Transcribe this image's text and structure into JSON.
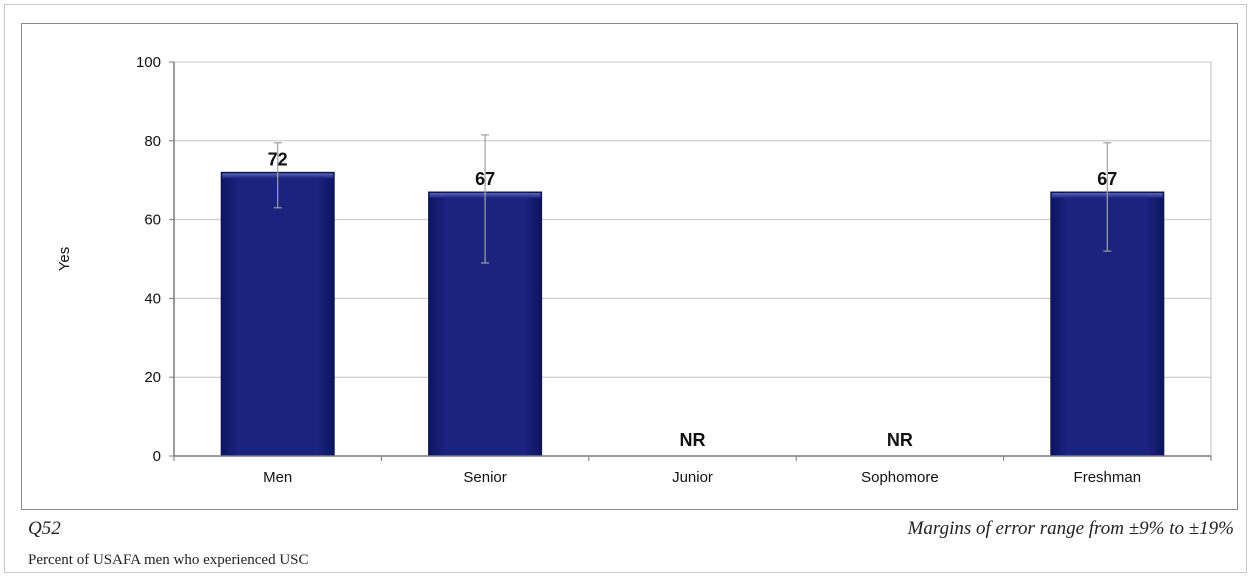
{
  "chart_data": {
    "type": "bar",
    "categories": [
      "Men",
      "Senior",
      "Junior",
      "Sophomore",
      "Freshman"
    ],
    "values": [
      72,
      67,
      null,
      null,
      67
    ],
    "data_labels": [
      "72",
      "67",
      "NR",
      "NR",
      "67"
    ],
    "error_bars": [
      {
        "low": 63,
        "high": 79.5
      },
      {
        "low": 49,
        "high": 81.5
      },
      null,
      null,
      {
        "low": 52,
        "high": 79.5
      }
    ],
    "ylabel": "Yes",
    "ylim": [
      0,
      100
    ],
    "yticks": [
      0,
      20,
      40,
      60,
      80,
      100
    ],
    "grid": true,
    "bar_color": "#1a237e"
  },
  "footer": {
    "question_id": "Q52",
    "margin_note": "Margins of error range from ±9% to ±19%",
    "description": "Percent of USAFA men who experienced USC"
  }
}
